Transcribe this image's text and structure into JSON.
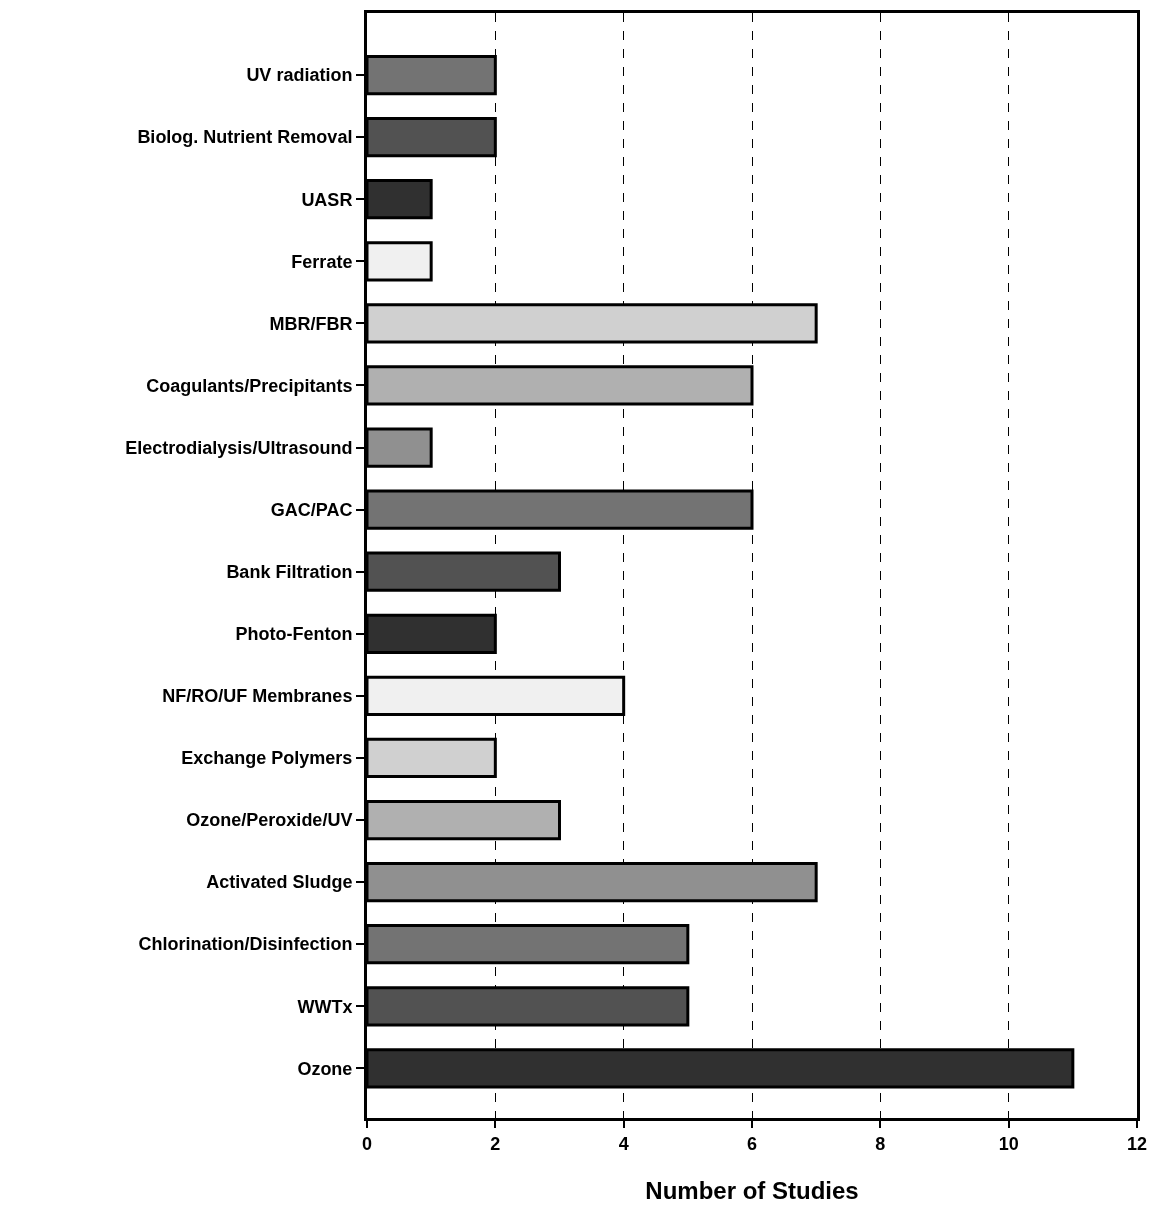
{
  "chart_data": {
    "type": "bar",
    "orientation": "horizontal",
    "xlabel": "Number of Studies",
    "categories": [
      "UV radiation",
      "Biolog. Nutrient Removal",
      "UASR",
      "Ferrate",
      "MBR/FBR",
      "Coagulants/Precipitants",
      "Electrodialysis/Ultrasound",
      "GAC/PAC",
      "Bank Filtration",
      "Photo-Fenton",
      "NF/RO/UF Membranes",
      "Exchange Polymers",
      "Ozone/Peroxide/UV",
      "Activated Sludge",
      "Chlorination/Disinfection",
      "WWTx",
      "Ozone"
    ],
    "values": [
      2,
      2,
      1,
      1,
      7,
      6,
      1,
      6,
      3,
      2,
      4,
      2,
      3,
      7,
      5,
      5,
      11
    ],
    "colors": [
      "#737373",
      "#525252",
      "#303030",
      "#f0f0f0",
      "#d0d0d0",
      "#b0b0b0",
      "#909090",
      "#737373",
      "#525252",
      "#303030",
      "#f0f0f0",
      "#d0d0d0",
      "#b0b0b0",
      "#909090",
      "#737373",
      "#525252",
      "#303030"
    ],
    "xlim": [
      0,
      12
    ],
    "xticks": [
      0,
      2,
      4,
      6,
      8,
      10,
      12
    ],
    "grid": "x"
  }
}
